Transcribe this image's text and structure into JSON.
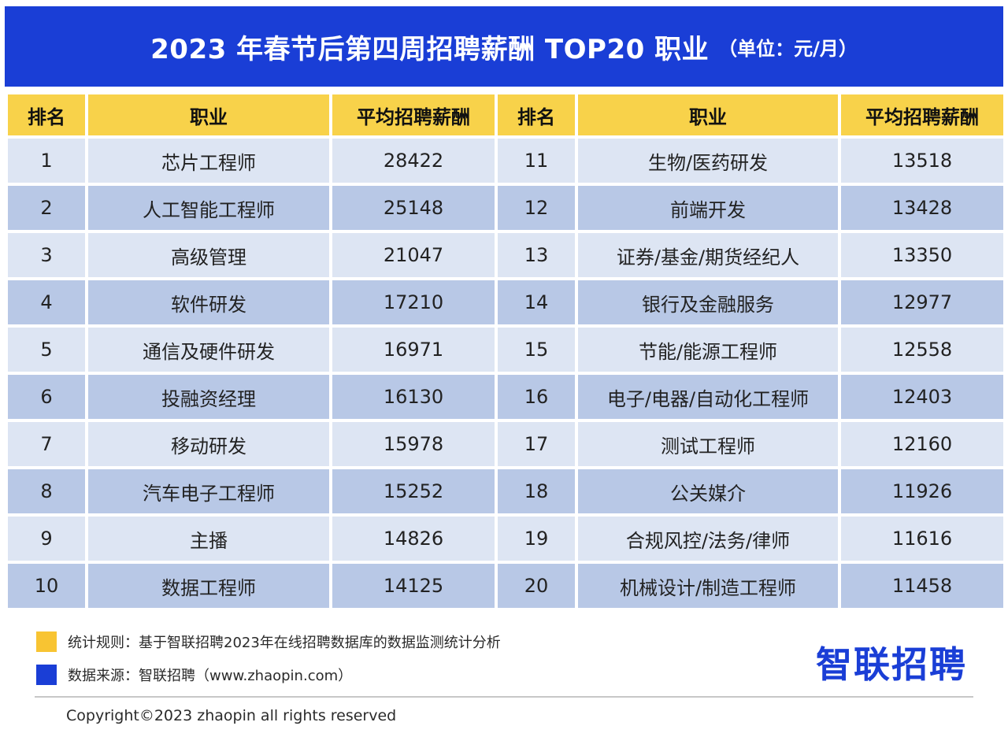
{
  "title": {
    "main": "2023 年春节后第四周招聘薪酬 TOP20 职业",
    "unit": "（单位：元/月）"
  },
  "table": {
    "headers": [
      "排名",
      "职业",
      "平均招聘薪酬",
      "排名",
      "职业",
      "平均招聘薪酬"
    ],
    "left": [
      {
        "rank": "1",
        "job": "芯片工程师",
        "salary": "28422"
      },
      {
        "rank": "2",
        "job": "人工智能工程师",
        "salary": "25148"
      },
      {
        "rank": "3",
        "job": "高级管理",
        "salary": "21047"
      },
      {
        "rank": "4",
        "job": "软件研发",
        "salary": "17210"
      },
      {
        "rank": "5",
        "job": "通信及硬件研发",
        "salary": "16971"
      },
      {
        "rank": "6",
        "job": "投融资经理",
        "salary": "16130"
      },
      {
        "rank": "7",
        "job": "移动研发",
        "salary": "15978"
      },
      {
        "rank": "8",
        "job": "汽车电子工程师",
        "salary": "15252"
      },
      {
        "rank": "9",
        "job": "主播",
        "salary": "14826"
      },
      {
        "rank": "10",
        "job": "数据工程师",
        "salary": "14125"
      }
    ],
    "right": [
      {
        "rank": "11",
        "job": "生物/医药研发",
        "salary": "13518"
      },
      {
        "rank": "12",
        "job": "前端开发",
        "salary": "13428"
      },
      {
        "rank": "13",
        "job": "证券/基金/期货经纪人",
        "salary": "13350"
      },
      {
        "rank": "14",
        "job": "银行及金融服务",
        "salary": "12977"
      },
      {
        "rank": "15",
        "job": "节能/能源工程师",
        "salary": "12558"
      },
      {
        "rank": "16",
        "job": "电子/电器/自动化工程师",
        "salary": "12403"
      },
      {
        "rank": "17",
        "job": "测试工程师",
        "salary": "12160"
      },
      {
        "rank": "18",
        "job": "公关媒介",
        "salary": "11926"
      },
      {
        "rank": "19",
        "job": "合规风控/法务/律师",
        "salary": "11616"
      },
      {
        "rank": "20",
        "job": "机械设计/制造工程师",
        "salary": "11458"
      }
    ]
  },
  "notes": {
    "rule": "统计规则：基于智联招聘2023年在线招聘数据库的数据监测统计分析",
    "source": "数据来源：智联招聘（www.zhaopin.com）"
  },
  "brand": "智联招聘",
  "copyright": "Copyright©2023 zhaopin all rights reserved",
  "colors": {
    "title_bg": "#1a3ed6",
    "header_bg": "#f8d24a",
    "row_light": "#dde5f3",
    "row_dark": "#b8c8e6",
    "rule_swatch": "#f8c432",
    "source_swatch": "#1a3ed6",
    "brand": "#1a3ed6"
  }
}
